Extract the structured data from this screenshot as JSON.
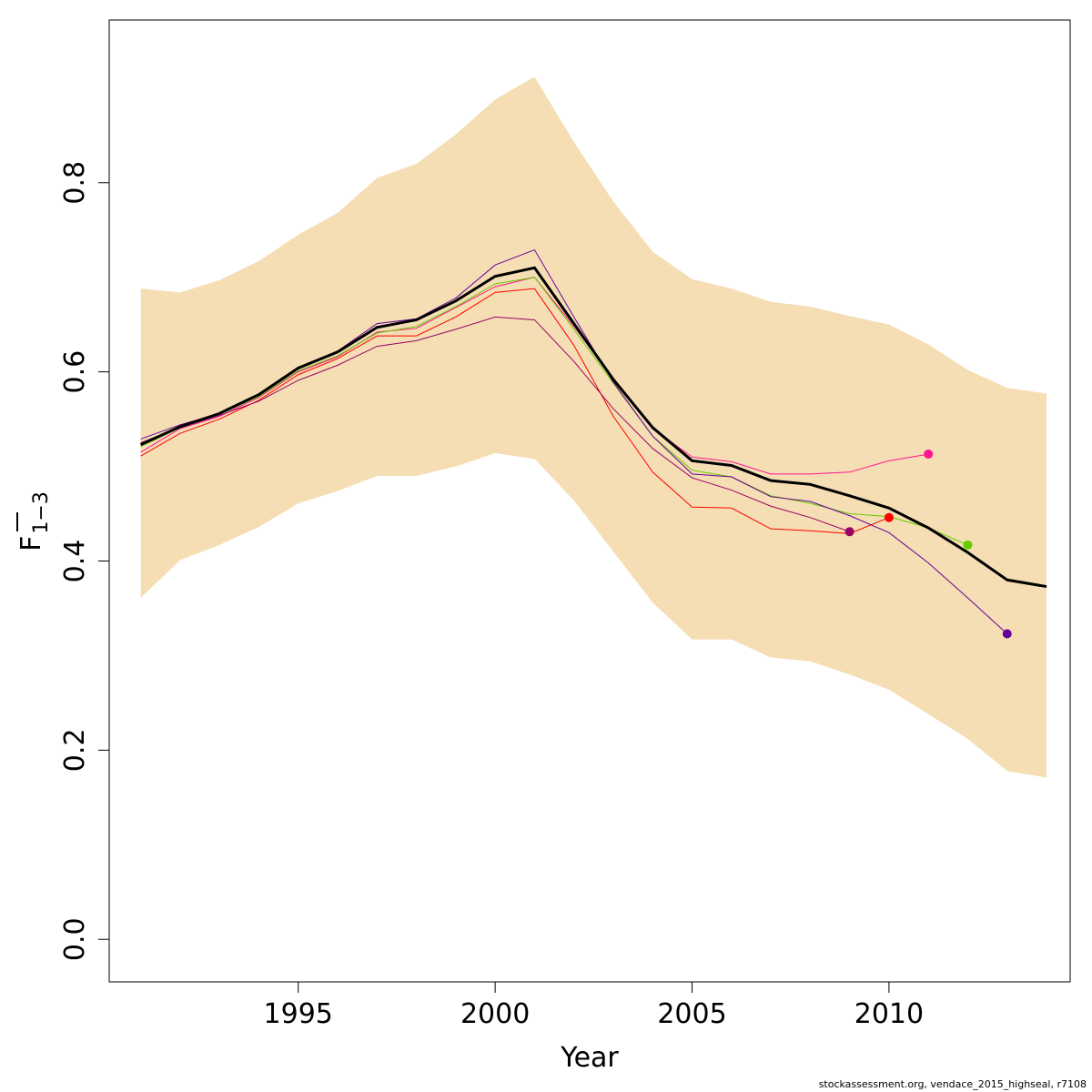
{
  "chart_data": {
    "type": "line",
    "xlabel": "Year",
    "ylabel_base": "F",
    "ylabel_sub": "1−3",
    "xlim": [
      1990.2,
      2014.6
    ],
    "ylim": [
      -0.045,
      0.972
    ],
    "x_ticks": [
      1995,
      2000,
      2005,
      2010
    ],
    "y_ticks": [
      0.0,
      0.2,
      0.4,
      0.6,
      0.8
    ],
    "y_tick_labels": [
      "0.0",
      "0.2",
      "0.4",
      "0.6",
      "0.8"
    ],
    "grid": false,
    "colors": {
      "band": "#f5deb3",
      "main": "#000000"
    },
    "confidence_band": {
      "x": [
        1991,
        1992,
        1993,
        1994,
        1995,
        1996,
        1997,
        1998,
        1999,
        2000,
        2001,
        2002,
        2003,
        2004,
        2005,
        2006,
        2007,
        2008,
        2009,
        2010,
        2011,
        2012,
        2013,
        2014
      ],
      "lower": [
        0.361,
        0.401,
        0.417,
        0.436,
        0.461,
        0.474,
        0.49,
        0.49,
        0.5,
        0.514,
        0.508,
        0.464,
        0.41,
        0.356,
        0.317,
        0.317,
        0.298,
        0.294,
        0.28,
        0.264,
        0.238,
        0.212,
        0.178,
        0.171
      ],
      "upper": [
        0.688,
        0.684,
        0.697,
        0.717,
        0.745,
        0.768,
        0.805,
        0.82,
        0.851,
        0.888,
        0.912,
        0.843,
        0.78,
        0.727,
        0.698,
        0.688,
        0.674,
        0.669,
        0.659,
        0.65,
        0.629,
        0.602,
        0.583,
        0.577
      ]
    },
    "main_series": {
      "x": [
        1991,
        1992,
        1993,
        1994,
        1995,
        1996,
        1997,
        1998,
        1999,
        2000,
        2001,
        2002,
        2003,
        2004,
        2005,
        2006,
        2007,
        2008,
        2009,
        2010,
        2011,
        2012,
        2013,
        2014
      ],
      "values": [
        0.523,
        0.542,
        0.556,
        0.576,
        0.604,
        0.621,
        0.647,
        0.655,
        0.675,
        0.701,
        0.71,
        0.651,
        0.592,
        0.541,
        0.506,
        0.501,
        0.485,
        0.481,
        0.469,
        0.456,
        0.435,
        0.409,
        0.38,
        0.373
      ]
    },
    "retro_series": [
      {
        "color": "#ff1493",
        "x": [
          1991,
          1992,
          1993,
          1994,
          1995,
          1996,
          1997,
          1998,
          1999,
          2000,
          2001,
          2002,
          2003,
          2004,
          2005,
          2006,
          2007,
          2008,
          2009,
          2010,
          2011
        ],
        "values": [
          0.515,
          0.54,
          0.553,
          0.573,
          0.6,
          0.616,
          0.642,
          0.646,
          0.668,
          0.69,
          0.7,
          0.648,
          0.593,
          0.54,
          0.51,
          0.505,
          0.492,
          0.492,
          0.494,
          0.506,
          0.513
        ]
      },
      {
        "color": "#ff0000",
        "x": [
          1991,
          1992,
          1993,
          1994,
          1995,
          1996,
          1997,
          1998,
          1999,
          2000,
          2001,
          2002,
          2003,
          2004,
          2005,
          2006,
          2007,
          2008,
          2009,
          2010
        ],
        "values": [
          0.511,
          0.535,
          0.55,
          0.57,
          0.597,
          0.614,
          0.638,
          0.638,
          0.658,
          0.684,
          0.688,
          0.628,
          0.553,
          0.494,
          0.457,
          0.456,
          0.434,
          0.432,
          0.429,
          0.446
        ]
      },
      {
        "color": "#990066",
        "x": [
          1991,
          1992,
          1993,
          1994,
          1995,
          1996,
          1997,
          1998,
          1999,
          2000,
          2001,
          2002,
          2003,
          2004,
          2005,
          2006,
          2007,
          2008,
          2009
        ],
        "values": [
          0.525,
          0.541,
          0.554,
          0.569,
          0.591,
          0.607,
          0.627,
          0.633,
          0.645,
          0.658,
          0.655,
          0.611,
          0.561,
          0.519,
          0.488,
          0.475,
          0.458,
          0.446,
          0.431
        ]
      },
      {
        "color": "#66cc00",
        "x": [
          1991,
          1992,
          1993,
          1994,
          1995,
          1996,
          1997,
          1998,
          1999,
          2000,
          2001,
          2002,
          2003,
          2004,
          2005,
          2006,
          2007,
          2008,
          2009,
          2010,
          2011,
          2012
        ],
        "values": [
          0.521,
          0.541,
          0.555,
          0.574,
          0.601,
          0.617,
          0.641,
          0.648,
          0.669,
          0.693,
          0.7,
          0.645,
          0.588,
          0.532,
          0.496,
          0.489,
          0.469,
          0.461,
          0.45,
          0.447,
          0.435,
          0.417
        ]
      },
      {
        "color": "#660099",
        "x": [
          1991,
          1992,
          1993,
          1994,
          1995,
          1996,
          1997,
          1998,
          1999,
          2000,
          2001,
          2002,
          2003,
          2004,
          2005,
          2006,
          2007,
          2008,
          2009,
          2010,
          2011,
          2012,
          2013
        ],
        "values": [
          0.529,
          0.544,
          0.556,
          0.575,
          0.603,
          0.622,
          0.651,
          0.656,
          0.678,
          0.713,
          0.729,
          0.658,
          0.589,
          0.532,
          0.492,
          0.489,
          0.468,
          0.463,
          0.448,
          0.43,
          0.398,
          0.361,
          0.323
        ]
      }
    ]
  },
  "footer": "stockassessment.org, vendace_2015_highseal, r7108"
}
